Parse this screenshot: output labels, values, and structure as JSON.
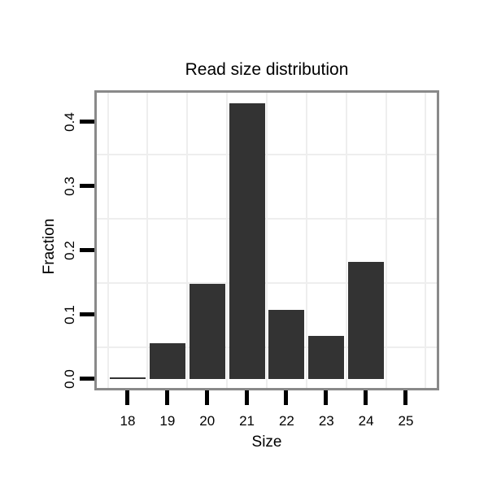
{
  "chart_data": {
    "type": "bar",
    "title": "Read size distribution",
    "xlabel": "Size",
    "ylabel": "Fraction",
    "categories": [
      "18",
      "19",
      "20",
      "21",
      "22",
      "23",
      "24",
      "25"
    ],
    "values": [
      0.003,
      0.056,
      0.148,
      0.429,
      0.108,
      0.067,
      0.182,
      0
    ],
    "ytick_labels": [
      "0.0",
      "0.1",
      "0.2",
      "0.3",
      "0.4"
    ],
    "ytick_values": [
      0.0,
      0.1,
      0.2,
      0.3,
      0.4
    ],
    "ylim": [
      0,
      0.45
    ],
    "grid": "light gridlines midway between ticks (0.05 steps vertically, category boundaries horizontally)",
    "legend": "none",
    "bar_color": "#333333",
    "panel_border_color": "#898989",
    "grid_color": "#eeeeee",
    "tick_color": "#000000",
    "text_color": "#000000",
    "background_color": "#ffffff"
  }
}
